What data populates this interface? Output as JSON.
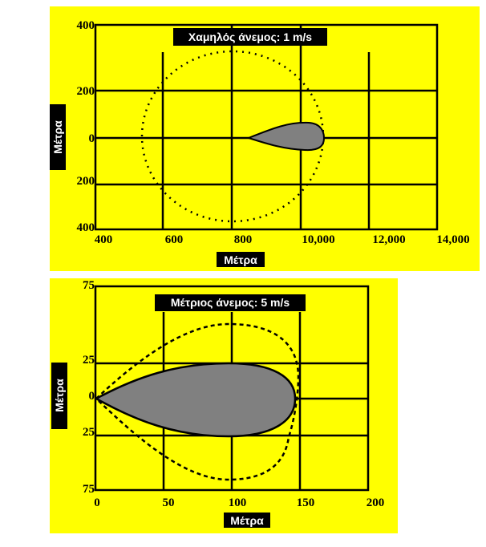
{
  "panels": [
    {
      "title": "Χαμηλός άνεμος: 1 m/s",
      "ylabel": "Μέτρα",
      "xlabel": "Μέτρα",
      "yticks": [
        "400",
        "200",
        "0",
        "200",
        "400"
      ],
      "xticks": [
        "400",
        "600",
        "800",
        "10,000",
        "12,000",
        "14,000"
      ]
    },
    {
      "title": "Μέτριος άνεμος: 5 m/s",
      "ylabel": "Μέτρα",
      "xlabel": "Μέτρα",
      "yticks": [
        "75",
        "25",
        "0",
        "25",
        "75"
      ],
      "xticks": [
        "0",
        "50",
        "100",
        "150",
        "200"
      ]
    }
  ]
}
